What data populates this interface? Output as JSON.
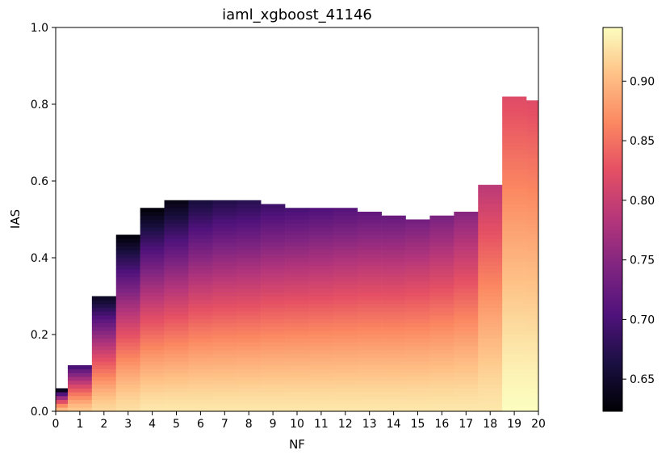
{
  "chart_data": {
    "type": "heatmap",
    "title": "iaml_xgboost_41146",
    "xlabel": "NF",
    "ylabel": "IAS",
    "xlim": [
      0,
      20
    ],
    "ylim": [
      0,
      1.0
    ],
    "x_ticks": [
      "0",
      "1",
      "2",
      "3",
      "4",
      "5",
      "6",
      "7",
      "8",
      "9",
      "10",
      "11",
      "12",
      "13",
      "14",
      "15",
      "16",
      "17",
      "18",
      "19",
      "20"
    ],
    "y_ticks": [
      "0.0",
      "0.2",
      "0.4",
      "0.6",
      "0.8",
      "1.0"
    ],
    "colormap": "magma",
    "colorbar": {
      "min": 0.623,
      "max": 0.945,
      "ticks": [
        "0.65",
        "0.70",
        "0.75",
        "0.80",
        "0.85",
        "0.90"
      ]
    },
    "columns": [
      {
        "nf": 0,
        "ias_max": 0.06,
        "top_value": 0.64,
        "bottom_value": 0.9
      },
      {
        "nf": 1,
        "ias_max": 0.12,
        "top_value": 0.7,
        "bottom_value": 0.91
      },
      {
        "nf": 2,
        "ias_max": 0.3,
        "top_value": 0.645,
        "bottom_value": 0.92
      },
      {
        "nf": 3,
        "ias_max": 0.46,
        "top_value": 0.628,
        "bottom_value": 0.925
      },
      {
        "nf": 4,
        "ias_max": 0.53,
        "top_value": 0.628,
        "bottom_value": 0.93
      },
      {
        "nf": 5,
        "ias_max": 0.55,
        "top_value": 0.635,
        "bottom_value": 0.93
      },
      {
        "nf": 6,
        "ias_max": 0.55,
        "top_value": 0.66,
        "bottom_value": 0.93
      },
      {
        "nf": 7,
        "ias_max": 0.55,
        "top_value": 0.67,
        "bottom_value": 0.93
      },
      {
        "nf": 8,
        "ias_max": 0.55,
        "top_value": 0.675,
        "bottom_value": 0.93
      },
      {
        "nf": 9,
        "ias_max": 0.54,
        "top_value": 0.69,
        "bottom_value": 0.93
      },
      {
        "nf": 10,
        "ias_max": 0.53,
        "top_value": 0.7,
        "bottom_value": 0.93
      },
      {
        "nf": 11,
        "ias_max": 0.53,
        "top_value": 0.705,
        "bottom_value": 0.93
      },
      {
        "nf": 12,
        "ias_max": 0.53,
        "top_value": 0.71,
        "bottom_value": 0.93
      },
      {
        "nf": 13,
        "ias_max": 0.52,
        "top_value": 0.72,
        "bottom_value": 0.93
      },
      {
        "nf": 14,
        "ias_max": 0.51,
        "top_value": 0.725,
        "bottom_value": 0.93
      },
      {
        "nf": 15,
        "ias_max": 0.5,
        "top_value": 0.735,
        "bottom_value": 0.93
      },
      {
        "nf": 16,
        "ias_max": 0.51,
        "top_value": 0.74,
        "bottom_value": 0.93
      },
      {
        "nf": 17,
        "ias_max": 0.52,
        "top_value": 0.75,
        "bottom_value": 0.93
      },
      {
        "nf": 18,
        "ias_max": 0.59,
        "top_value": 0.79,
        "bottom_value": 0.93
      },
      {
        "nf": 19,
        "ias_max": 0.82,
        "top_value": 0.82,
        "bottom_value": 0.945
      },
      {
        "nf": 20,
        "ias_max": 0.81,
        "top_value": 0.82,
        "bottom_value": 0.945
      }
    ]
  }
}
